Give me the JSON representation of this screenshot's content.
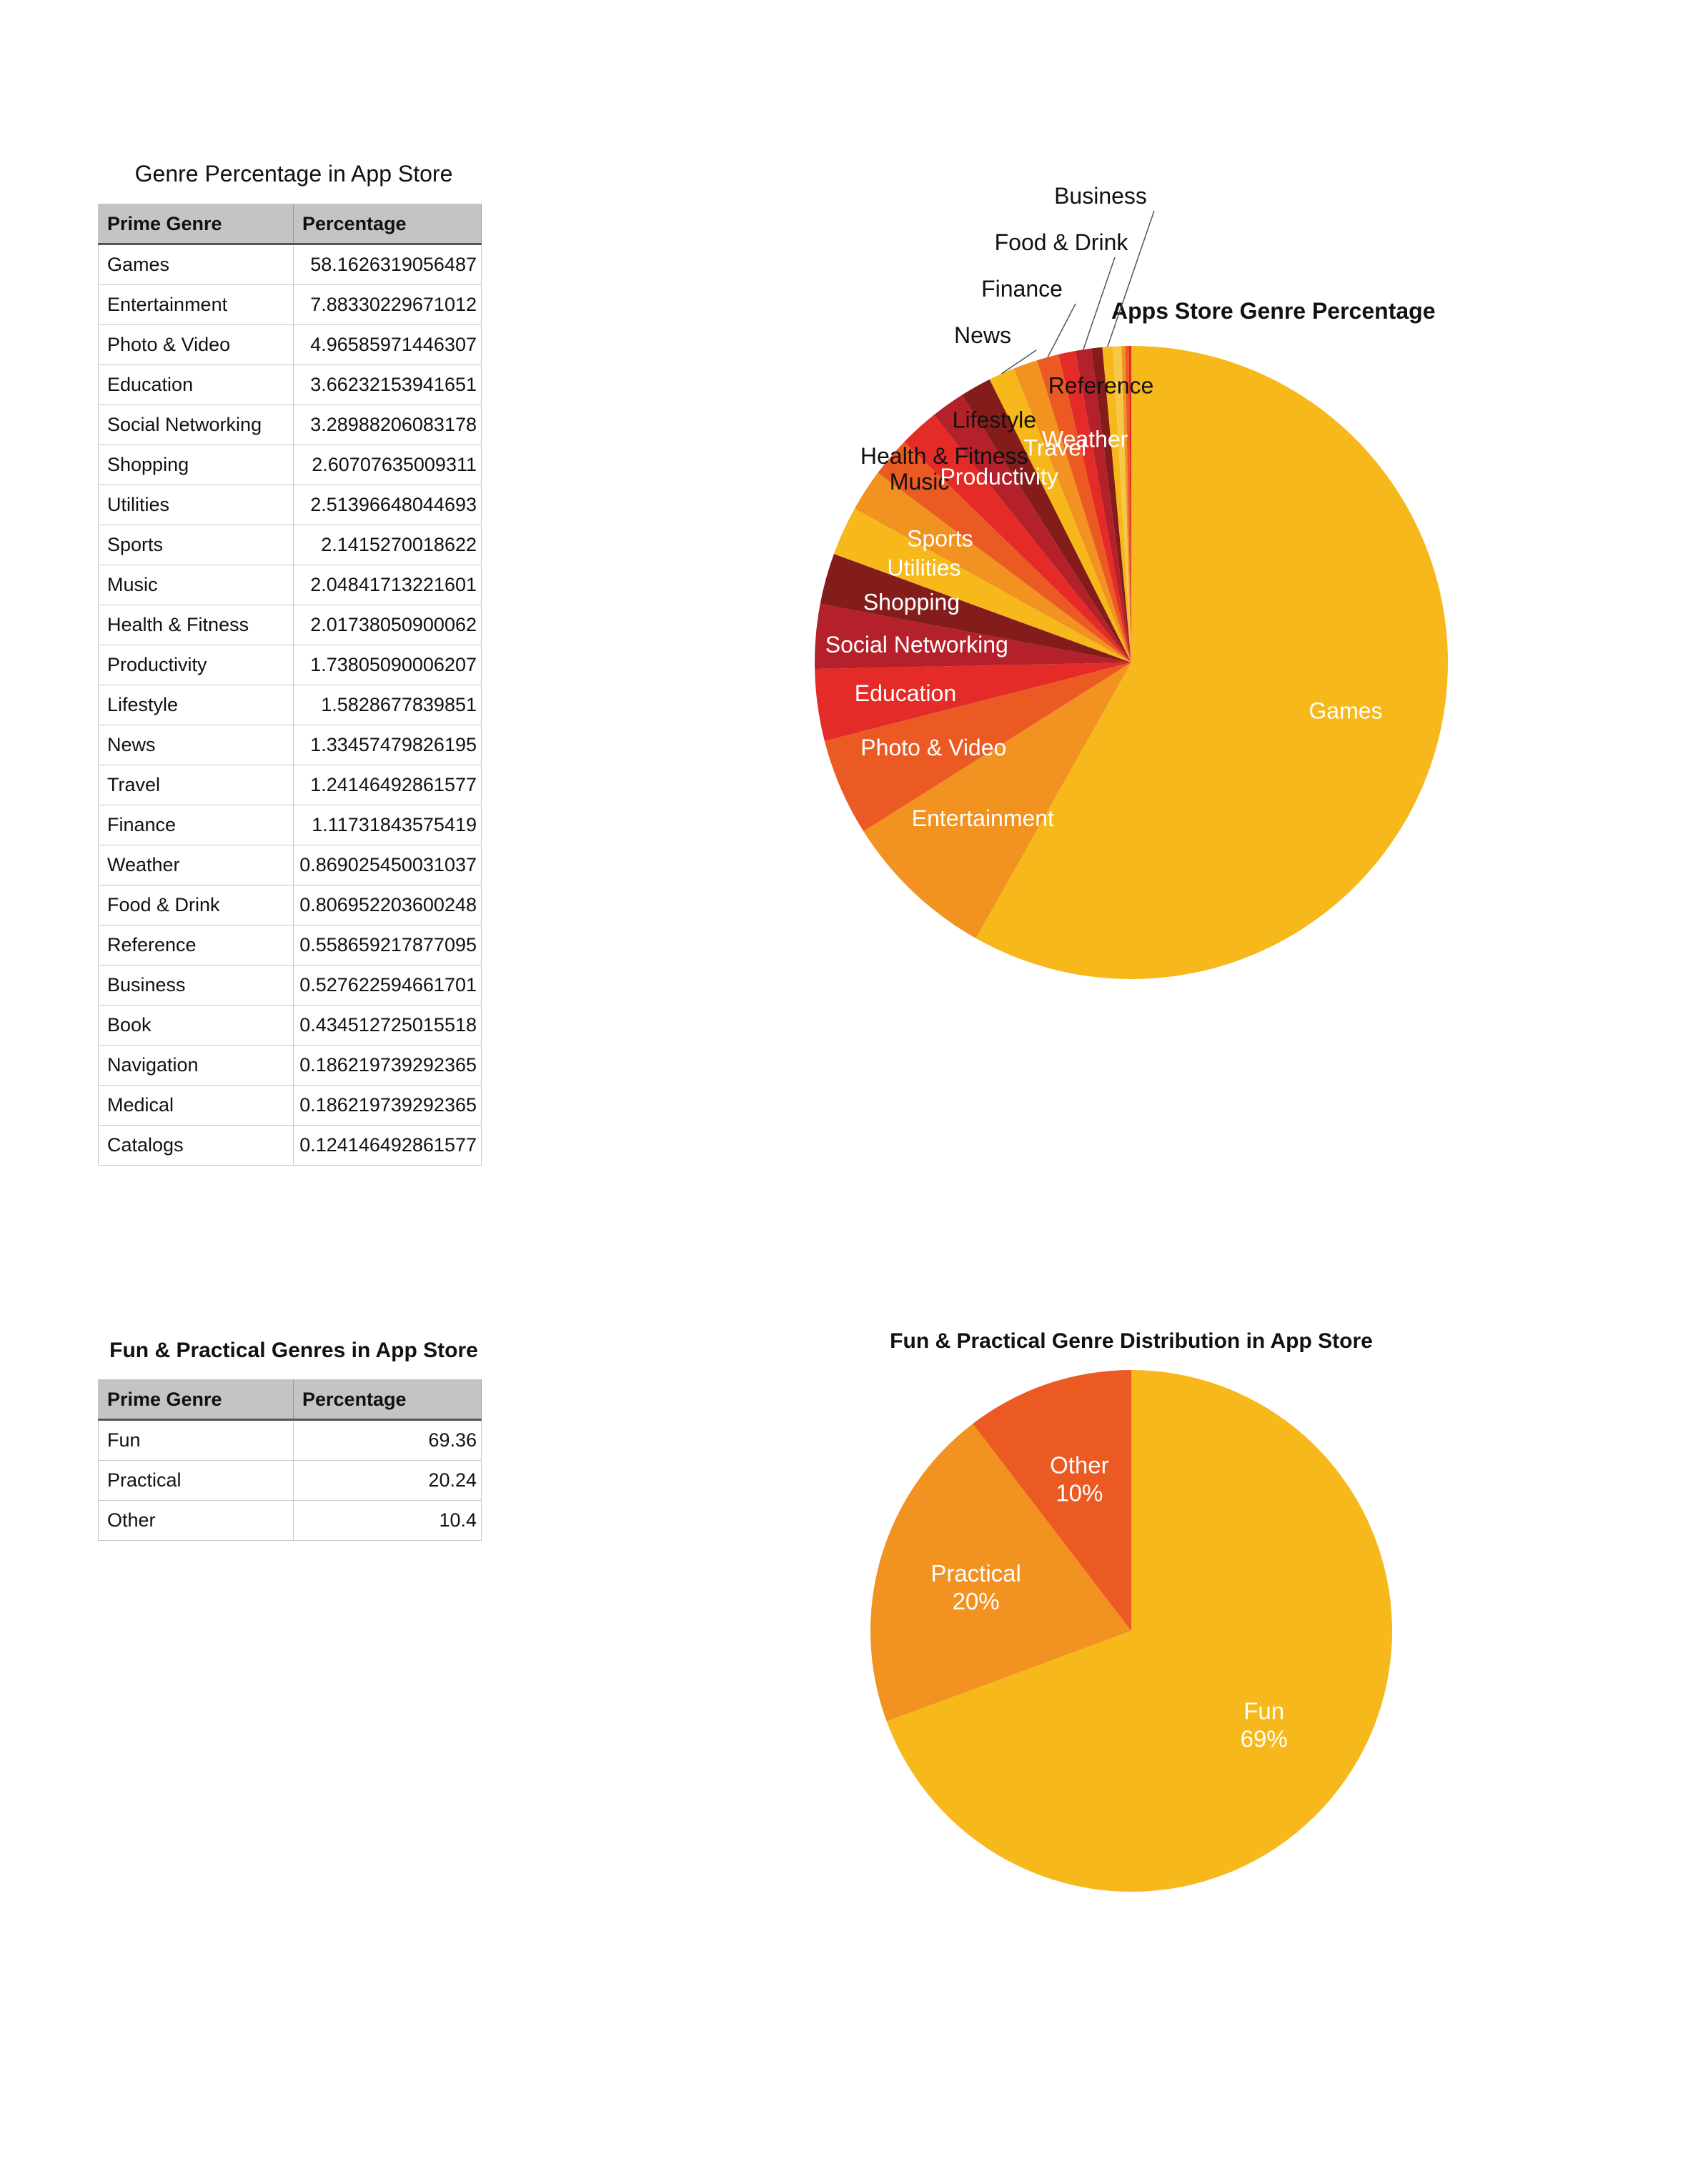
{
  "genre_table": {
    "title": "Genre Percentage in App Store",
    "headers": [
      "Prime Genre",
      "Percentage"
    ],
    "rows": [
      [
        "Games",
        "58.1626319056487"
      ],
      [
        "Entertainment",
        "7.88330229671012"
      ],
      [
        "Photo & Video",
        "4.96585971446307"
      ],
      [
        "Education",
        "3.66232153941651"
      ],
      [
        "Social Networking",
        "3.28988206083178"
      ],
      [
        "Shopping",
        "2.60707635009311"
      ],
      [
        "Utilities",
        "2.51396648044693"
      ],
      [
        "Sports",
        "2.1415270018622"
      ],
      [
        "Music",
        "2.04841713221601"
      ],
      [
        "Health & Fitness",
        "2.01738050900062"
      ],
      [
        "Productivity",
        "1.73805090006207"
      ],
      [
        "Lifestyle",
        "1.5828677839851"
      ],
      [
        "News",
        "1.33457479826195"
      ],
      [
        "Travel",
        "1.24146492861577"
      ],
      [
        "Finance",
        "1.11731843575419"
      ],
      [
        "Weather",
        "0.869025450031037"
      ],
      [
        "Food & Drink",
        "0.806952203600248"
      ],
      [
        "Reference",
        "0.558659217877095"
      ],
      [
        "Business",
        "0.527622594661701"
      ],
      [
        "Book",
        "0.434512725015518"
      ],
      [
        "Navigation",
        "0.186219739292365"
      ],
      [
        "Medical",
        "0.186219739292365"
      ],
      [
        "Catalogs",
        "0.124146492861577"
      ]
    ]
  },
  "fun_table": {
    "title": "Fun & Practical Genres in App Store",
    "headers": [
      "Prime Genre",
      "Percentage"
    ],
    "rows": [
      [
        "Fun",
        "69.36"
      ],
      [
        "Practical",
        "20.24"
      ],
      [
        "Other",
        "10.4"
      ]
    ]
  },
  "chart_data": [
    {
      "type": "pie",
      "title": "Apps Store Genre Percentage",
      "label_colors": {
        "inside": "#ffffff",
        "outside": "#111111"
      },
      "slices": [
        {
          "label": "Games",
          "value": 58.1626319056487,
          "color": "#F6B81A",
          "show_label": true
        },
        {
          "label": "Entertainment",
          "value": 7.88330229671012,
          "color": "#F29220",
          "show_label": true
        },
        {
          "label": "Photo & Video",
          "value": 4.96585971446307,
          "color": "#EC5A24",
          "show_label": true
        },
        {
          "label": "Education",
          "value": 3.66232153941651,
          "color": "#E52B27",
          "show_label": true
        },
        {
          "label": "Social Networking",
          "value": 3.28988206083178,
          "color": "#B4212A",
          "show_label": true
        },
        {
          "label": "Shopping",
          "value": 2.60707635009311,
          "color": "#841C1C",
          "show_label": true
        },
        {
          "label": "Utilities",
          "value": 2.51396648044693,
          "color": "#F6B81A",
          "show_label": true
        },
        {
          "label": "Sports",
          "value": 2.1415270018622,
          "color": "#F29220",
          "show_label": true
        },
        {
          "label": "Music",
          "value": 2.04841713221601,
          "color": "#EC5A24",
          "show_label": true
        },
        {
          "label": "Health & Fitness",
          "value": 2.01738050900062,
          "color": "#E52B27",
          "show_label": true
        },
        {
          "label": "Productivity",
          "value": 1.73805090006207,
          "color": "#B4212A",
          "show_label": true
        },
        {
          "label": "Lifestyle",
          "value": 1.5828677839851,
          "color": "#841C1C",
          "show_label": true
        },
        {
          "label": "News",
          "value": 1.33457479826195,
          "color": "#F6B81A",
          "show_label": true
        },
        {
          "label": "Travel",
          "value": 1.24146492861577,
          "color": "#F29220",
          "show_label": true
        },
        {
          "label": "Finance",
          "value": 1.11731843575419,
          "color": "#EC5A24",
          "show_label": true
        },
        {
          "label": "Weather",
          "value": 0.869025450031037,
          "color": "#E52B27",
          "show_label": true
        },
        {
          "label": "Food & Drink",
          "value": 0.806952203600248,
          "color": "#B4212A",
          "show_label": true
        },
        {
          "label": "Reference",
          "value": 0.558659217877095,
          "color": "#841C1C",
          "show_label": true
        },
        {
          "label": "Business",
          "value": 0.527622594661701,
          "color": "#F6B81A",
          "show_label": true
        },
        {
          "label": "Book",
          "value": 0.434512725015518,
          "color": "#F6C84A",
          "show_label": false
        },
        {
          "label": "Navigation",
          "value": 0.186219739292365,
          "color": "#F29220",
          "show_label": false
        },
        {
          "label": "Medical",
          "value": 0.186219739292365,
          "color": "#EC5A24",
          "show_label": false
        },
        {
          "label": "Catalogs",
          "value": 0.124146492861577,
          "color": "#E52B27",
          "show_label": false
        }
      ]
    },
    {
      "type": "pie",
      "title": "Fun & Practical Genre Distribution in App Store",
      "slices": [
        {
          "label": "Fun",
          "value": 69.36,
          "percent_label": "69%",
          "color": "#F6B81A"
        },
        {
          "label": "Practical",
          "value": 20.24,
          "percent_label": "20%",
          "color": "#F29220"
        },
        {
          "label": "Other",
          "value": 10.4,
          "percent_label": "10%",
          "color": "#EC5A24"
        }
      ]
    }
  ]
}
